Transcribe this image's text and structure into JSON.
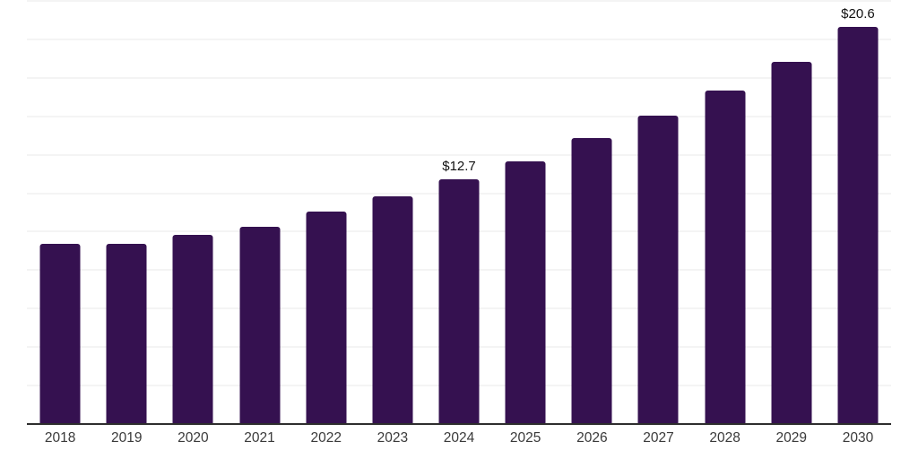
{
  "chart_data": {
    "type": "bar",
    "title": "",
    "xlabel": "",
    "ylabel": "",
    "categories": [
      "2018",
      "2019",
      "2020",
      "2021",
      "2022",
      "2023",
      "2024",
      "2025",
      "2026",
      "2027",
      "2028",
      "2029",
      "2030"
    ],
    "values": [
      9.3,
      9.3,
      9.8,
      10.2,
      11.0,
      11.8,
      12.7,
      13.6,
      14.8,
      16.0,
      17.3,
      18.8,
      20.6
    ],
    "data_labels": [
      "",
      "",
      "",
      "",
      "",
      "",
      "$12.7",
      "",
      "",
      "",
      "",
      "",
      "$20.6"
    ],
    "ylim": [
      0,
      22
    ],
    "gridline_step": 2,
    "grid": "horizontal",
    "legend": "none",
    "bar_color": "#351150",
    "axis_line_color": "#2e2e2e",
    "gridline_color": "#f4f4f4",
    "tick_label_color": "#3a3a3a",
    "value_label_color": "#111111"
  }
}
